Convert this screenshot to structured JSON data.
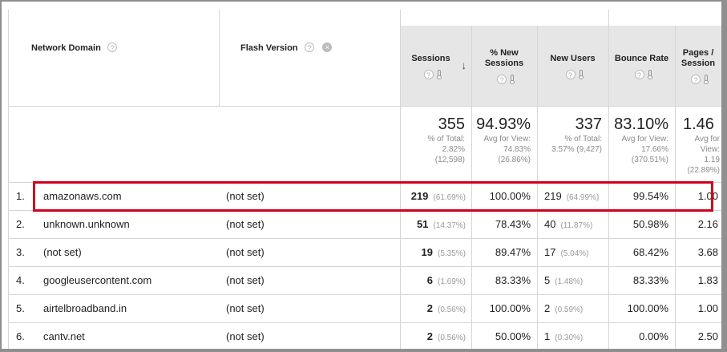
{
  "headers": {
    "network_domain": "Network Domain",
    "flash_version": "Flash Version",
    "sessions": "Sessions",
    "new_sessions": "% New Sessions",
    "new_users": "New Users",
    "bounce_rate": "Bounce Rate",
    "pages_session": "Pages / Session",
    "help_glyph": "?",
    "remove_glyph": "×",
    "sort_arrow": "↓"
  },
  "totals": {
    "sessions": {
      "value": "355",
      "sub1": "% of Total:",
      "sub2": "2.82%",
      "sub3": "(12,598)"
    },
    "new_sessions": {
      "value": "94.93%",
      "sub1": "Avg for View:",
      "sub2": "74.83%",
      "sub3": "(26.86%)"
    },
    "new_users": {
      "value": "337",
      "sub1": "% of Total:",
      "sub2": "3.57% (9,427)",
      "sub3": ""
    },
    "bounce_rate": {
      "value": "83.10%",
      "sub1": "Avg for View:",
      "sub2": "17.66%",
      "sub3": "(370.51%)"
    },
    "pages_session": {
      "value": "1.46",
      "sub1": "Avg for",
      "sub2": "View:",
      "sub3": "1.19",
      "sub4": "(22.89%)"
    }
  },
  "rows": [
    {
      "index": "1.",
      "domain": "amazonaws.com",
      "flash": "(not set)",
      "sessions": "219",
      "sessions_pct": "(61.69%)",
      "new_sessions": "100.00%",
      "new_users": "219",
      "new_users_pct": "(64.99%)",
      "bounce_rate": "99.54%",
      "pages": "1.00"
    },
    {
      "index": "2.",
      "domain": "unknown.unknown",
      "flash": "(not set)",
      "sessions": "51",
      "sessions_pct": "(14.37%)",
      "new_sessions": "78.43%",
      "new_users": "40",
      "new_users_pct": "(11.87%)",
      "bounce_rate": "50.98%",
      "pages": "2.16"
    },
    {
      "index": "3.",
      "domain": "(not set)",
      "flash": "(not set)",
      "sessions": "19",
      "sessions_pct": "(5.35%)",
      "new_sessions": "89.47%",
      "new_users": "17",
      "new_users_pct": "(5.04%)",
      "bounce_rate": "68.42%",
      "pages": "3.68"
    },
    {
      "index": "4.",
      "domain": "googleusercontent.com",
      "flash": "(not set)",
      "sessions": "6",
      "sessions_pct": "(1.69%)",
      "new_sessions": "83.33%",
      "new_users": "5",
      "new_users_pct": "(1.48%)",
      "bounce_rate": "83.33%",
      "pages": "1.83"
    },
    {
      "index": "5.",
      "domain": "airtelbroadband.in",
      "flash": "(not set)",
      "sessions": "2",
      "sessions_pct": "(0.56%)",
      "new_sessions": "100.00%",
      "new_users": "2",
      "new_users_pct": "(0.59%)",
      "bounce_rate": "100.00%",
      "pages": "1.00"
    },
    {
      "index": "6.",
      "domain": "cantv.net",
      "flash": "(not set)",
      "sessions": "2",
      "sessions_pct": "(0.56%)",
      "new_sessions": "50.00%",
      "new_users": "1",
      "new_users_pct": "(0.30%)",
      "bounce_rate": "0.00%",
      "pages": "2.50"
    }
  ],
  "colors": {
    "highlight": "#d0011b",
    "header_bg": "#e6e6e6",
    "frame": "#8f8f8f"
  }
}
